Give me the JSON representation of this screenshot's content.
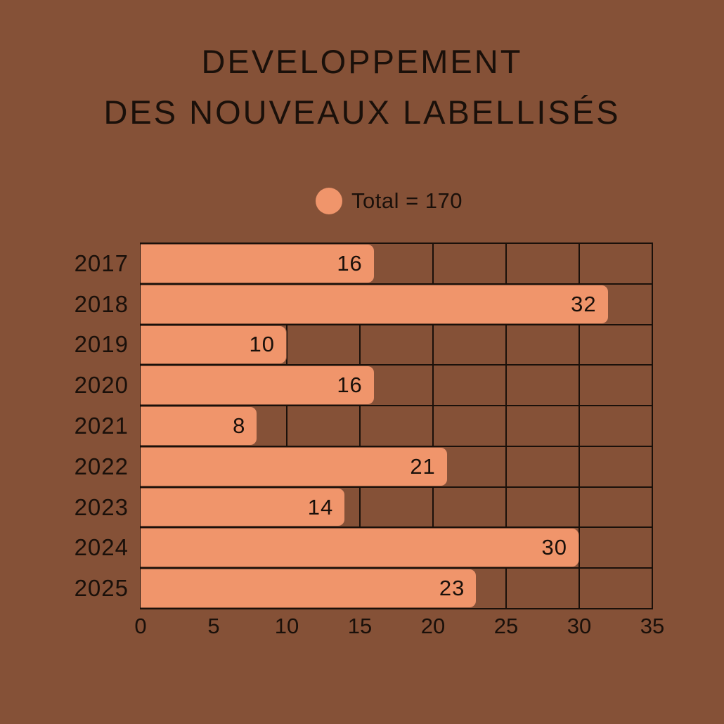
{
  "title": {
    "line1": "DEVELOPPEMENT",
    "line2": "DES NOUVEAUX LABELLISÉS"
  },
  "legend": {
    "label": "Total = 170"
  },
  "colors": {
    "background": "#855137",
    "bar_fill": "#F0956B",
    "ink": "#1A100A"
  },
  "chart_data": {
    "type": "bar",
    "orientation": "horizontal",
    "title": "DEVELOPPEMENT DES NOUVEAUX LABELLISÉS",
    "legend": "Total = 170",
    "total": 170,
    "categories": [
      "2017",
      "2018",
      "2019",
      "2020",
      "2021",
      "2022",
      "2023",
      "2024",
      "2025"
    ],
    "values": [
      16,
      32,
      10,
      16,
      8,
      21,
      14,
      30,
      23
    ],
    "xlabel": "",
    "ylabel": "",
    "xlim": [
      0,
      35
    ],
    "x_ticks": [
      0,
      5,
      10,
      15,
      20,
      25,
      30,
      35
    ],
    "grid": true,
    "value_labels": "inside right end of bars"
  }
}
